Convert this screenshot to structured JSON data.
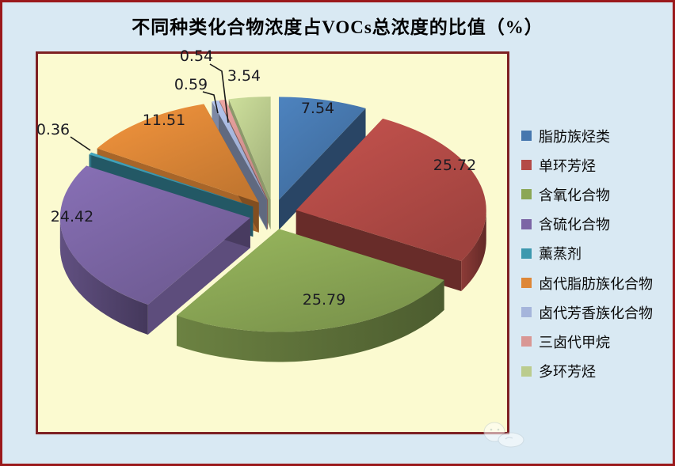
{
  "window": {
    "background": "#d9e9f3",
    "outer_border_color": "#9b191b",
    "plot_background": "#fbfad0",
    "plot_border_color": "#7e2022"
  },
  "chart_data": {
    "type": "pie",
    "title": "不同种类化合物浓度占VOCs总浓度的比值（%）",
    "unit": "%",
    "effect": "3d-exploded",
    "start_angle_deg": 0,
    "direction": "clockwise",
    "legend_position": "right",
    "grid": false,
    "series": [
      {
        "name": "脂肪族烃类",
        "value": 7.54,
        "label": "7.54",
        "color": "#4677ae"
      },
      {
        "name": "单环芳烃",
        "value": 25.72,
        "label": "25.72",
        "color": "#b44b47"
      },
      {
        "name": "含氧化合物",
        "value": 25.79,
        "label": "25.79",
        "color": "#8ba755"
      },
      {
        "name": "含硫化合物",
        "value": 24.42,
        "label": "24.42",
        "color": "#7c66a5"
      },
      {
        "name": "薰蒸剂",
        "value": 0.36,
        "label": "0.36",
        "color": "#3d98ae"
      },
      {
        "name": "卤代脂肪族化合物",
        "value": 11.51,
        "label": "11.51",
        "color": "#de8737"
      },
      {
        "name": "卤代芳香族化合物",
        "value": 0.59,
        "label": "0.59",
        "color": "#a5b5db"
      },
      {
        "name": "三卤代甲烷",
        "value": 0.54,
        "label": "0.54",
        "color": "#d99794"
      },
      {
        "name": "多环芳烃",
        "value": 3.54,
        "label": "3.54",
        "color": "#bbcc8e"
      }
    ]
  }
}
